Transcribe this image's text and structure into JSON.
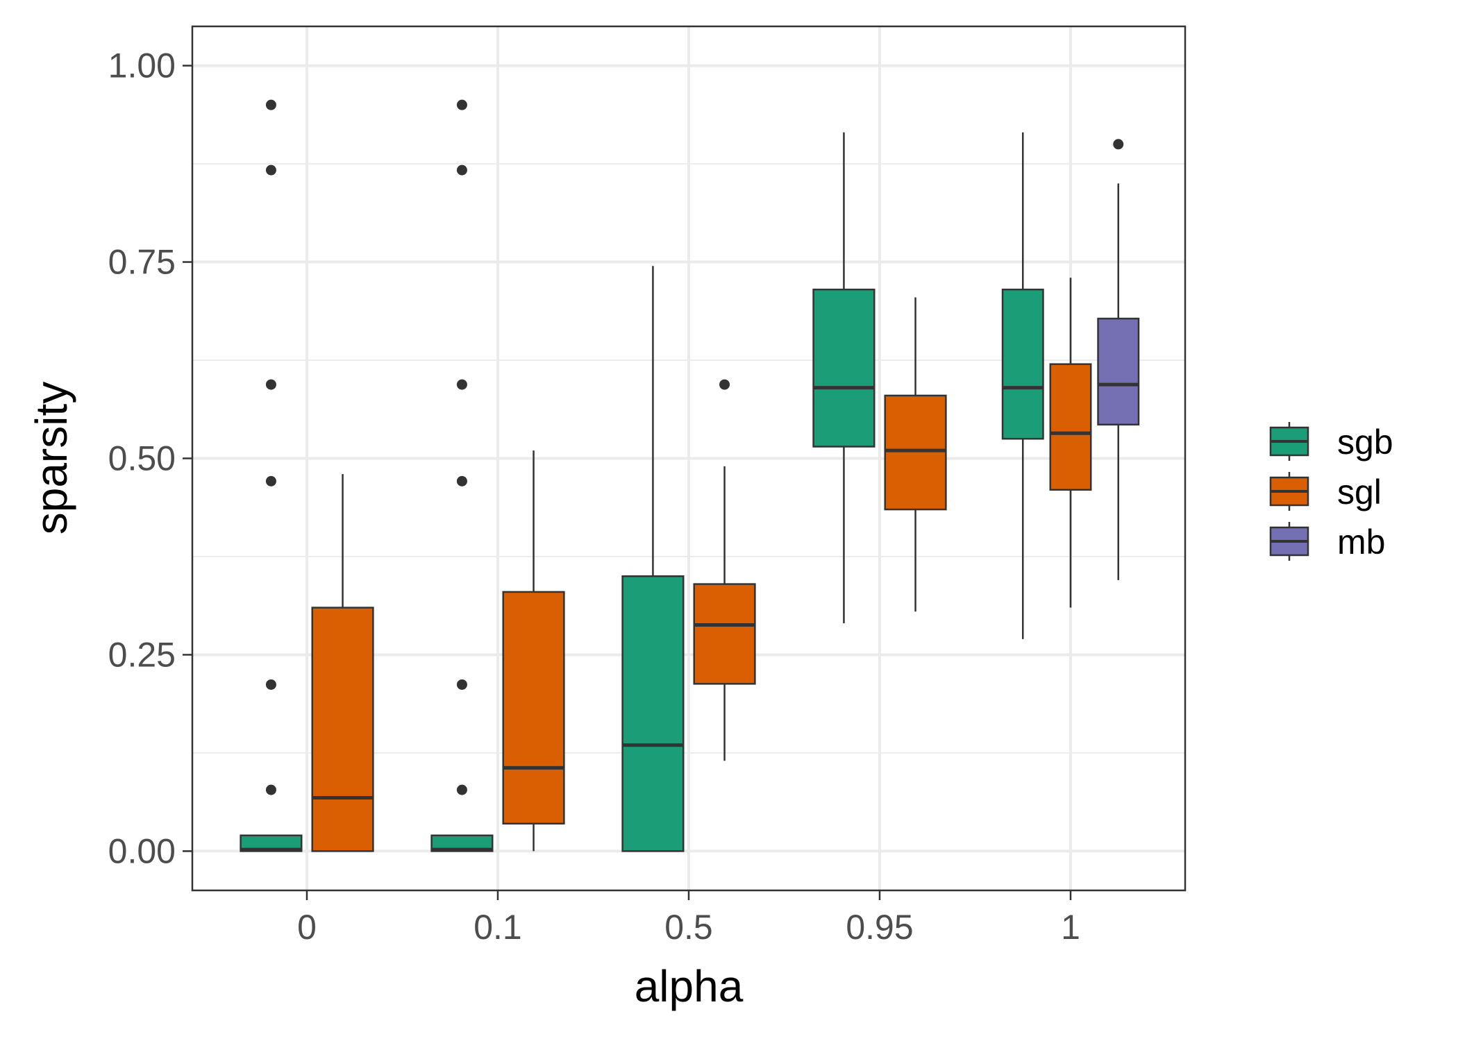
{
  "chart_data": {
    "type": "box",
    "title": "",
    "xlabel": "alpha",
    "ylabel": "sparsity",
    "categories": [
      "0",
      "0.1",
      "0.5",
      "0.95",
      "1"
    ],
    "ylim": [
      -0.05,
      1.05
    ],
    "y_ticks": [
      0,
      0.25,
      0.5,
      0.75,
      1
    ],
    "y_tick_labels": [
      "0.00",
      "0.25",
      "0.50",
      "0.75",
      "1.00"
    ],
    "grid": true,
    "legend_position": "right",
    "series": [
      {
        "name": "sgb",
        "color": "#1b9e77",
        "boxes": [
          {
            "category": "0",
            "q1": 0.0,
            "median": 0.002,
            "q3": 0.02,
            "whisker_low": 0.0,
            "whisker_high": 0.02,
            "outliers": [
              0.078,
              0.212,
              0.471,
              0.594,
              0.867,
              0.95
            ]
          },
          {
            "category": "0.1",
            "q1": 0.0,
            "median": 0.002,
            "q3": 0.02,
            "whisker_low": 0.0,
            "whisker_high": 0.02,
            "outliers": [
              0.078,
              0.212,
              0.471,
              0.594,
              0.867,
              0.95
            ]
          },
          {
            "category": "0.5",
            "q1": 0.0,
            "median": 0.135,
            "q3": 0.35,
            "whisker_low": 0.0,
            "whisker_high": 0.745,
            "outliers": []
          },
          {
            "category": "0.95",
            "q1": 0.515,
            "median": 0.59,
            "q3": 0.715,
            "whisker_low": 0.29,
            "whisker_high": 0.915,
            "outliers": []
          },
          {
            "category": "1",
            "q1": 0.525,
            "median": 0.59,
            "q3": 0.715,
            "whisker_low": 0.27,
            "whisker_high": 0.915,
            "outliers": []
          }
        ]
      },
      {
        "name": "sgl",
        "color": "#d95f02",
        "boxes": [
          {
            "category": "0",
            "q1": 0.0,
            "median": 0.068,
            "q3": 0.31,
            "whisker_low": 0.0,
            "whisker_high": 0.48,
            "outliers": []
          },
          {
            "category": "0.1",
            "q1": 0.035,
            "median": 0.106,
            "q3": 0.33,
            "whisker_low": 0.0,
            "whisker_high": 0.51,
            "outliers": []
          },
          {
            "category": "0.5",
            "q1": 0.213,
            "median": 0.288,
            "q3": 0.34,
            "whisker_low": 0.115,
            "whisker_high": 0.49,
            "outliers": [
              0.594
            ]
          },
          {
            "category": "0.95",
            "q1": 0.435,
            "median": 0.51,
            "q3": 0.58,
            "whisker_low": 0.305,
            "whisker_high": 0.705,
            "outliers": []
          },
          {
            "category": "1",
            "q1": 0.46,
            "median": 0.532,
            "q3": 0.62,
            "whisker_low": 0.31,
            "whisker_high": 0.73,
            "outliers": []
          }
        ]
      },
      {
        "name": "mb",
        "color": "#7570b3",
        "boxes": [
          {
            "category": "1",
            "q1": 0.543,
            "median": 0.594,
            "q3": 0.678,
            "whisker_low": 0.345,
            "whisker_high": 0.85,
            "outliers": [
              0.9
            ]
          }
        ]
      }
    ]
  }
}
